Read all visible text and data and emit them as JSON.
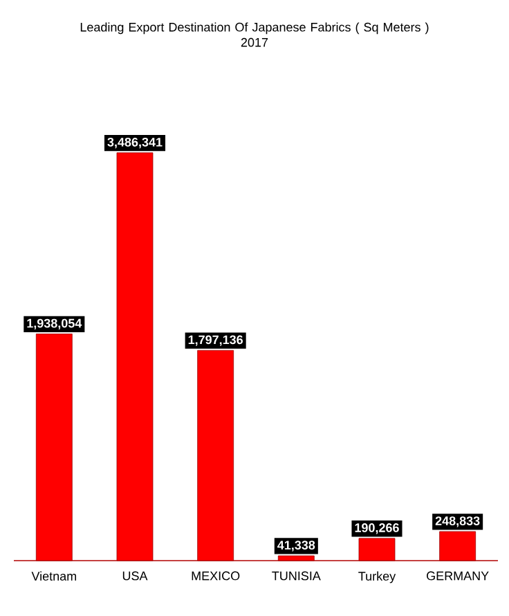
{
  "chart_data": {
    "type": "bar",
    "title": "Leading Export Destination Of Japanese Fabrics ( Sq Meters )",
    "subtitle": "2017",
    "categories": [
      "Vietnam",
      "USA",
      "MEXICO",
      "TUNISIA",
      "Turkey",
      "GERMANY"
    ],
    "values": [
      1938054,
      3486341,
      1797136,
      41338,
      190266,
      248833
    ],
    "value_labels": [
      "1,938,054",
      "3,486,341",
      "1,797,136",
      "41,338",
      "190,266",
      "248,833"
    ],
    "color": "#ff0000"
  }
}
